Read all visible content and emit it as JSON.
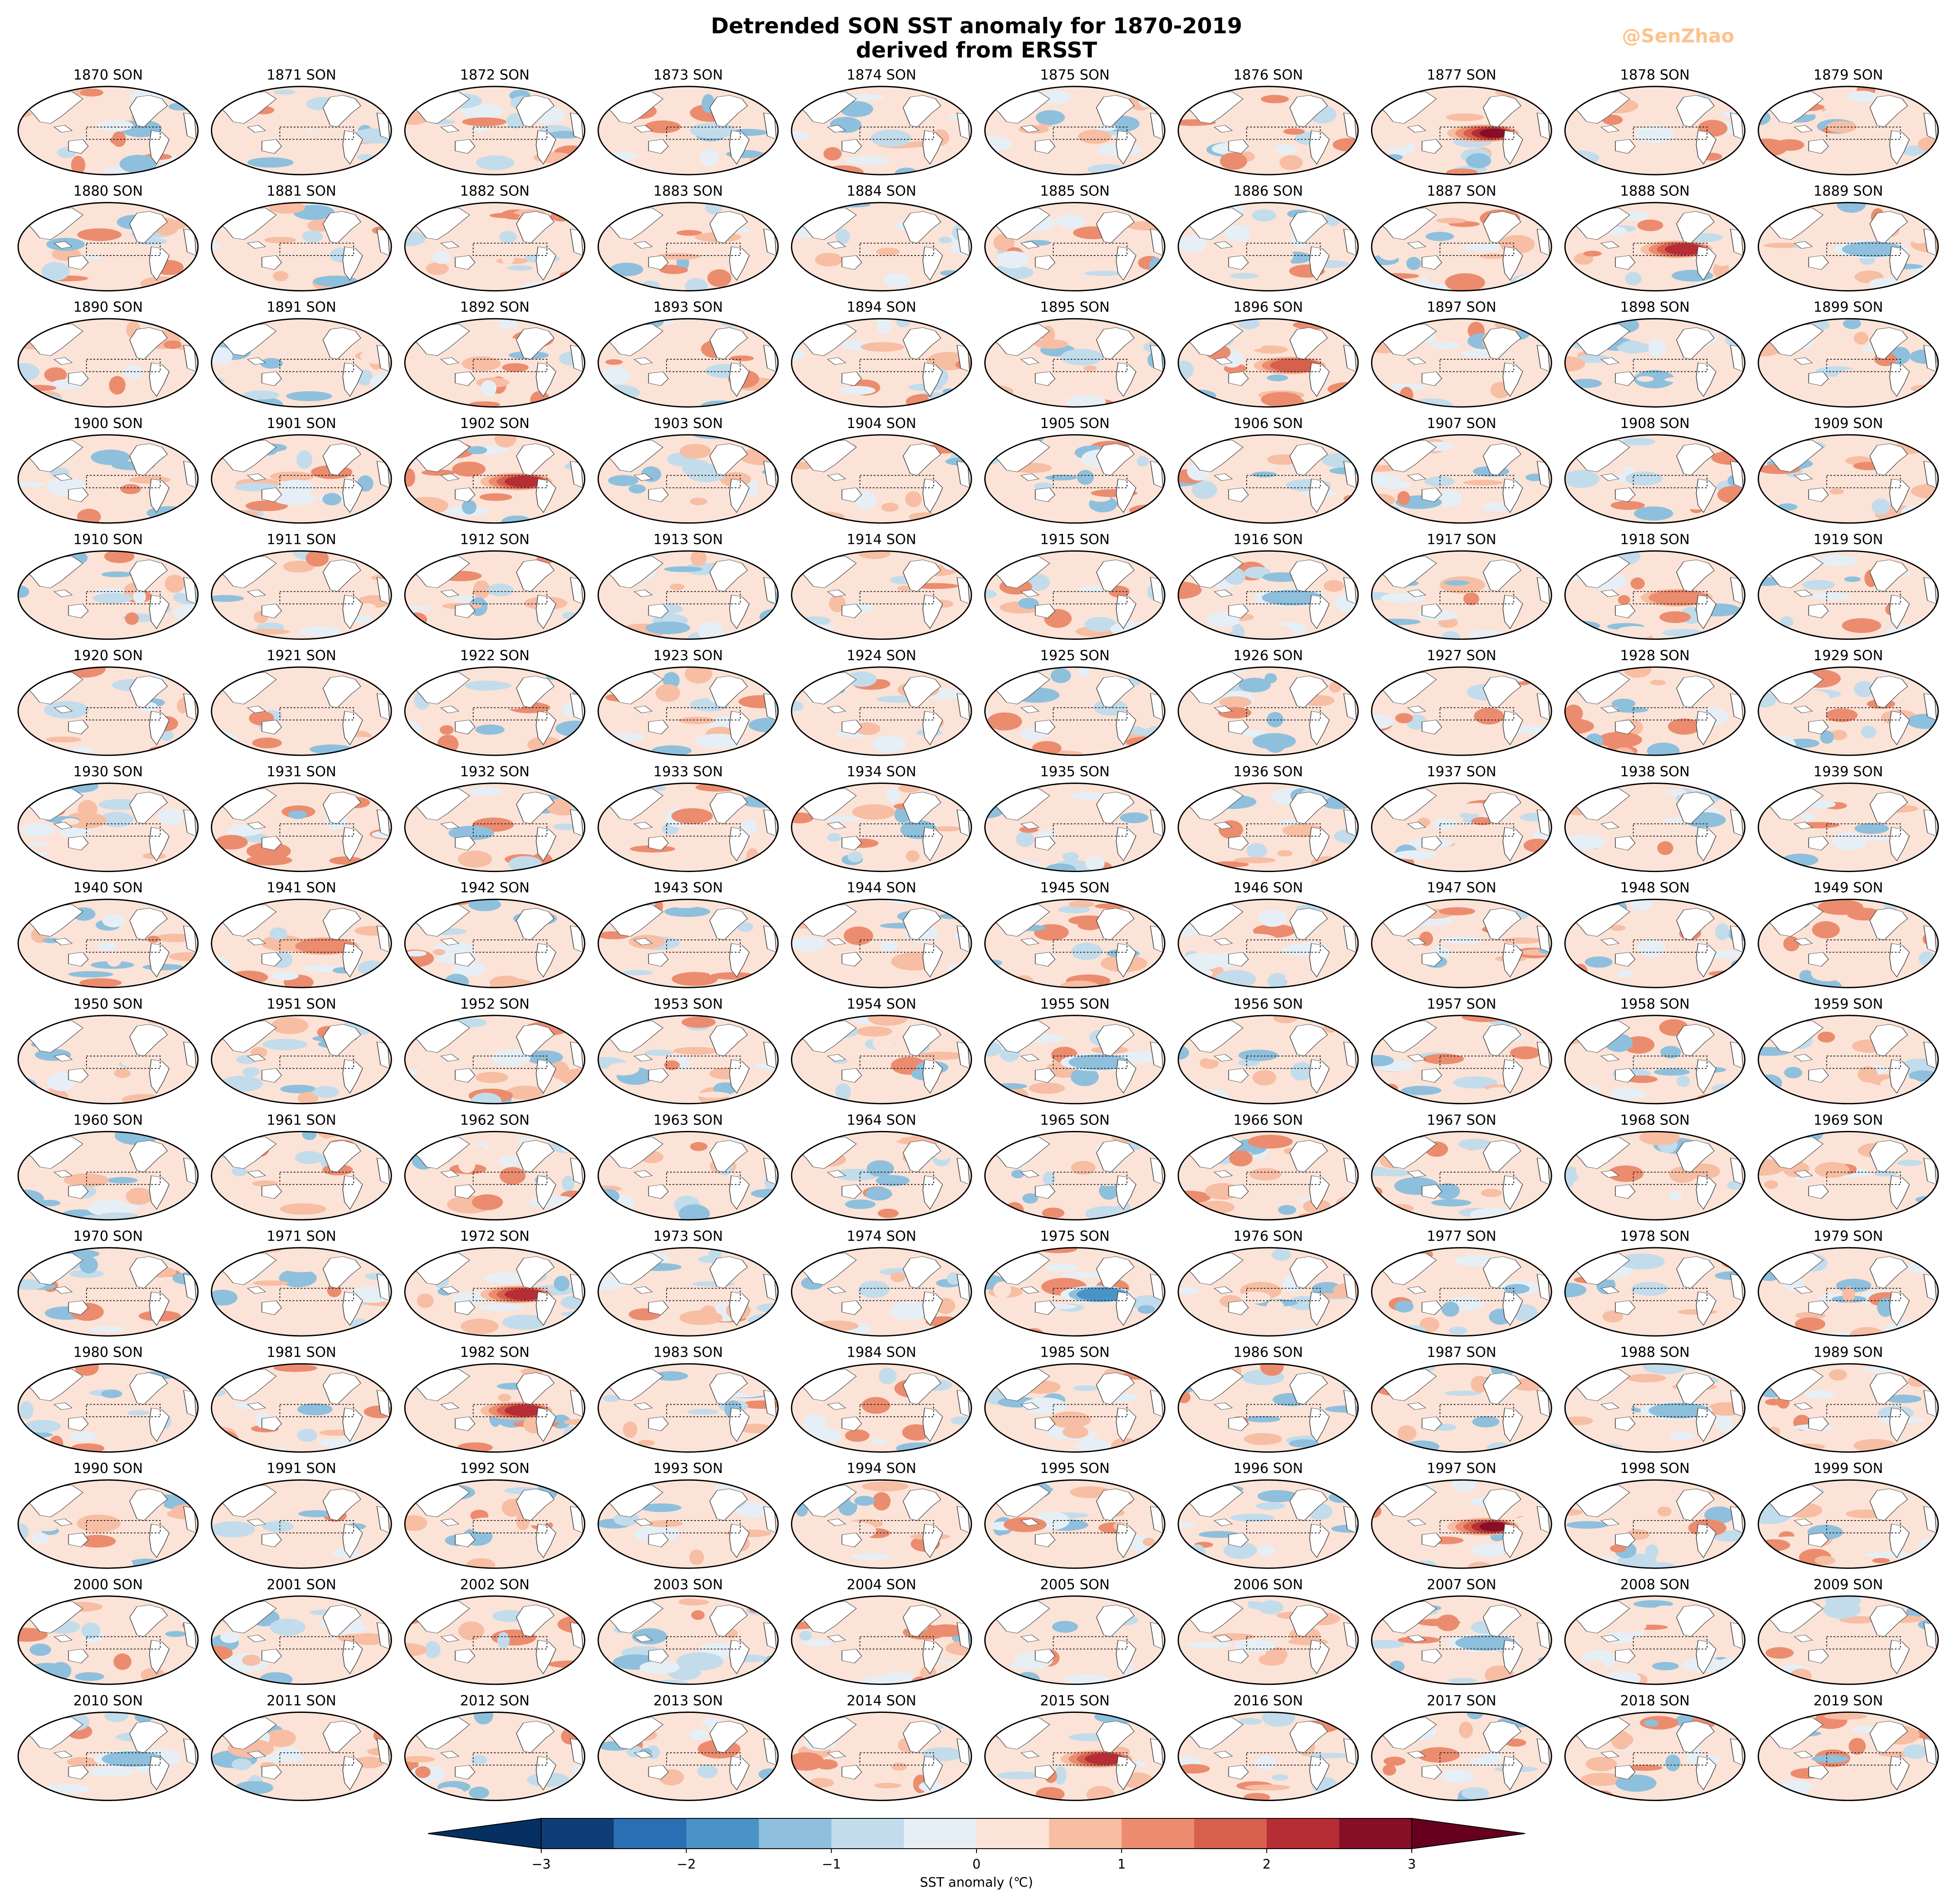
{
  "title": {
    "line1": "Detrended SON SST anomaly for 1870-2019",
    "line2": "derived from ERSST"
  },
  "watermark": "@SenZhao",
  "chart_data": {
    "type": "heatmap",
    "panel_label_suffix": "SON",
    "years": {
      "first": 1870,
      "last": 2019
    },
    "grid": {
      "rows": 15,
      "cols": 10
    },
    "colorbar": {
      "label": "SST anomaly (℃)",
      "ticks": [
        "−3",
        "−2",
        "−1",
        "0",
        "1",
        "2",
        "3"
      ],
      "range": [
        -3,
        3
      ],
      "levels": [
        -3,
        -2.5,
        -2,
        -1.5,
        -1,
        -0.5,
        0,
        0.5,
        1,
        1.5,
        2,
        2.5,
        3
      ],
      "colors": [
        "#0f3d75",
        "#2a6fb3",
        "#4a93c6",
        "#8ec0dd",
        "#c2dcec",
        "#e7eff6",
        "#fbe3d7",
        "#f7bea4",
        "#ec8c6f",
        "#d6604d",
        "#b72d36",
        "#860e26"
      ],
      "extend": "both",
      "under_color": "#053061",
      "over_color": "#67001f"
    },
    "nino_box_dotted": true,
    "notable_events": [
      {
        "year": 1877,
        "equatorial_pacific_anomaly": 3.0
      },
      {
        "year": 1888,
        "equatorial_pacific_anomaly": 2.4
      },
      {
        "year": 1896,
        "equatorial_pacific_anomaly": 2.0
      },
      {
        "year": 1902,
        "equatorial_pacific_anomaly": 2.4
      },
      {
        "year": 1918,
        "equatorial_pacific_anomaly": 1.6
      },
      {
        "year": 1941,
        "equatorial_pacific_anomaly": 1.6
      },
      {
        "year": 1972,
        "equatorial_pacific_anomaly": 2.6
      },
      {
        "year": 1982,
        "equatorial_pacific_anomaly": 2.8
      },
      {
        "year": 1997,
        "equatorial_pacific_anomaly": 3.0
      },
      {
        "year": 2015,
        "equatorial_pacific_anomaly": 2.8
      },
      {
        "year": 1889,
        "equatorial_pacific_anomaly": -1.4
      },
      {
        "year": 1916,
        "equatorial_pacific_anomaly": -1.6
      },
      {
        "year": 1955,
        "equatorial_pacific_anomaly": -1.6
      },
      {
        "year": 1975,
        "equatorial_pacific_anomaly": -1.8
      },
      {
        "year": 1988,
        "equatorial_pacific_anomaly": -1.6
      },
      {
        "year": 2007,
        "equatorial_pacific_anomaly": -1.6
      },
      {
        "year": 2010,
        "equatorial_pacific_anomaly": -1.6
      }
    ]
  }
}
